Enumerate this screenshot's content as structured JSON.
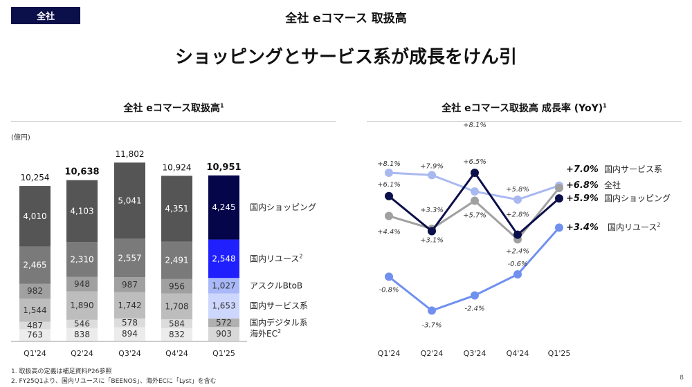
{
  "header": {
    "badge": "全社",
    "title": "全社 eコマース 取扱高",
    "headline": "ショッピングとサービス系が成長をけん引"
  },
  "chart_data": [
    {
      "type": "bar",
      "stacked": true,
      "title": "全社 eコマース取扱高",
      "title_sup": "1",
      "unit": "(億円)",
      "categories": [
        "Q1'24",
        "Q2'24",
        "Q3'24",
        "Q4'24",
        "Q1'25"
      ],
      "totals": [
        "10,254",
        "10,638",
        "11,802",
        "10,924",
        "10,951"
      ],
      "totals_bold": [
        false,
        true,
        false,
        false,
        true
      ],
      "series": [
        {
          "name": "海外EC",
          "sup": "2",
          "values": [
            763,
            838,
            894,
            832,
            903
          ],
          "color": "#ececec",
          "highlight_color": "#d8d8d8",
          "text": "#333"
        },
        {
          "name": "国内デジタル系",
          "sup": "",
          "values": [
            487,
            546,
            578,
            584,
            572
          ],
          "color": "#dcdcdc",
          "highlight_color": "#b0b0b0",
          "text": "#333"
        },
        {
          "name": "国内サービス系",
          "sup": "",
          "values": [
            1544,
            1890,
            1742,
            1708,
            1653
          ],
          "color": "#bdbdbd",
          "highlight_color": "#cdd6fc",
          "text": "#333"
        },
        {
          "name": "アスクルBtoB",
          "sup": "",
          "values": [
            982,
            948,
            987,
            956,
            1027
          ],
          "color": "#a0a0a0",
          "highlight_color": "#a8b8f8",
          "text": "#333"
        },
        {
          "name": "国内リユース",
          "sup": "2",
          "values": [
            2465,
            2310,
            2557,
            2491,
            2548
          ],
          "color": "#7a7a7a",
          "highlight_color": "#2020ff",
          "text": "#fff"
        },
        {
          "name": "国内ショッピング",
          "sup": "",
          "values": [
            4010,
            4103,
            5041,
            4351,
            4245
          ],
          "color": "#555555",
          "highlight_color": "#05054a",
          "text": "#fff"
        }
      ]
    },
    {
      "type": "line",
      "title": "全社 eコマース取扱高 成長率 (YoY)",
      "title_sup": "1",
      "categories": [
        "Q1'24",
        "Q2'24",
        "Q3'24",
        "Q4'24",
        "Q1'25"
      ],
      "series": [
        {
          "name": "国内サービス系",
          "sup": "",
          "values": [
            8.1,
            7.9,
            6.5,
            5.8,
            7.0
          ],
          "labels": [
            "+8.1%",
            "+7.9%",
            "+6.5%",
            "+5.8%",
            "+7.0%"
          ],
          "color": "#a9b9f0"
        },
        {
          "name": "全社",
          "sup": "",
          "values": [
            4.4,
            3.3,
            5.7,
            2.4,
            6.8
          ],
          "labels": [
            "+4.4%",
            "+3.3%",
            "+5.7%",
            "+2.4%",
            "+6.8%"
          ],
          "color": "#a0a0a0"
        },
        {
          "name": "国内ショッピング",
          "sup": "",
          "values": [
            6.1,
            3.1,
            8.1,
            2.8,
            5.9
          ],
          "labels": [
            "+6.1%",
            "+3.1%",
            "+8.1%",
            "+2.8%",
            "+5.9%"
          ],
          "color": "#0b0f4a"
        },
        {
          "name": "国内リユース",
          "sup": "2",
          "values": [
            -0.8,
            -3.7,
            -2.4,
            -0.6,
            3.4
          ],
          "labels": [
            "-0.8%",
            "-3.7%",
            "-2.4%",
            "-0.6%",
            "+3.4%"
          ],
          "color": "#7090f0"
        }
      ]
    }
  ],
  "footnotes": [
    "1.  取扱高の定義は補足資料P26参照",
    "2.  FY25Q1より、国内リユースに「BEENOS」、海外ECに「Lyst」を含む"
  ],
  "page_number": "8"
}
